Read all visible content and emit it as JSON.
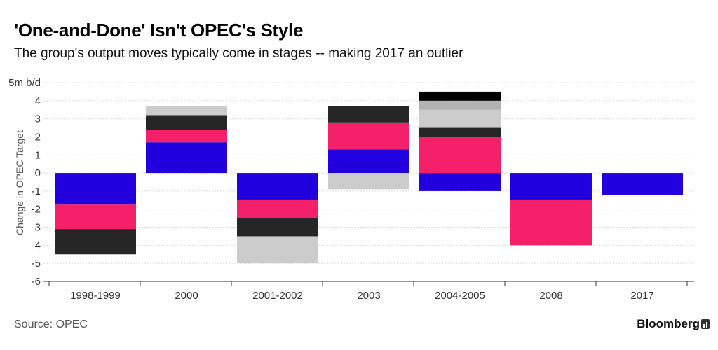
{
  "title": "'One-and-Done' Isn't OPEC's Style",
  "subtitle": "The group's output moves typically come in stages -- making 2017 an outlier",
  "source": "Source: OPEC",
  "brand": "Bloomberg",
  "chart_data": {
    "type": "bar",
    "stacked": true,
    "categories": [
      "1998-1999",
      "2000",
      "2001-2002",
      "2003",
      "2004-2005",
      "2008",
      "2017"
    ],
    "ylabel": "Change in OPEC Target",
    "ylim": [
      -6,
      5
    ],
    "yticks": [
      -6,
      -5,
      -4,
      -3,
      -2,
      -1,
      0,
      1,
      2,
      3,
      4,
      5
    ],
    "ytick_labels": [
      "-6",
      "-5",
      "-4",
      "-3",
      "-2",
      "-1",
      "0",
      "1",
      "2",
      "3",
      "4",
      "5m b/d"
    ],
    "grid": true,
    "series": [
      {
        "color": "#2200dd",
        "values": [
          -1.75,
          1.7,
          -1.5,
          1.3,
          -1.0,
          -1.5,
          -1.2
        ]
      },
      {
        "color": "#f5206a",
        "values": [
          -1.35,
          0.7,
          -1.0,
          1.5,
          2.0,
          -2.5,
          0
        ]
      },
      {
        "color": "#262626",
        "values": [
          -1.4,
          0.8,
          -1.0,
          0.9,
          0.5,
          0,
          0
        ]
      },
      {
        "color": "#cccccc",
        "values": [
          0,
          0.5,
          -1.5,
          -0.9,
          1.0,
          0,
          0
        ]
      },
      {
        "color": "#b3b3b3",
        "values": [
          0,
          0,
          0,
          0,
          0.5,
          0,
          0
        ]
      },
      {
        "color": "#888888",
        "values": [
          0,
          0,
          0,
          0,
          0,
          0,
          0
        ]
      },
      {
        "color": "#000000",
        "values": [
          0,
          0,
          0,
          0,
          0.5,
          0,
          0
        ]
      }
    ]
  }
}
